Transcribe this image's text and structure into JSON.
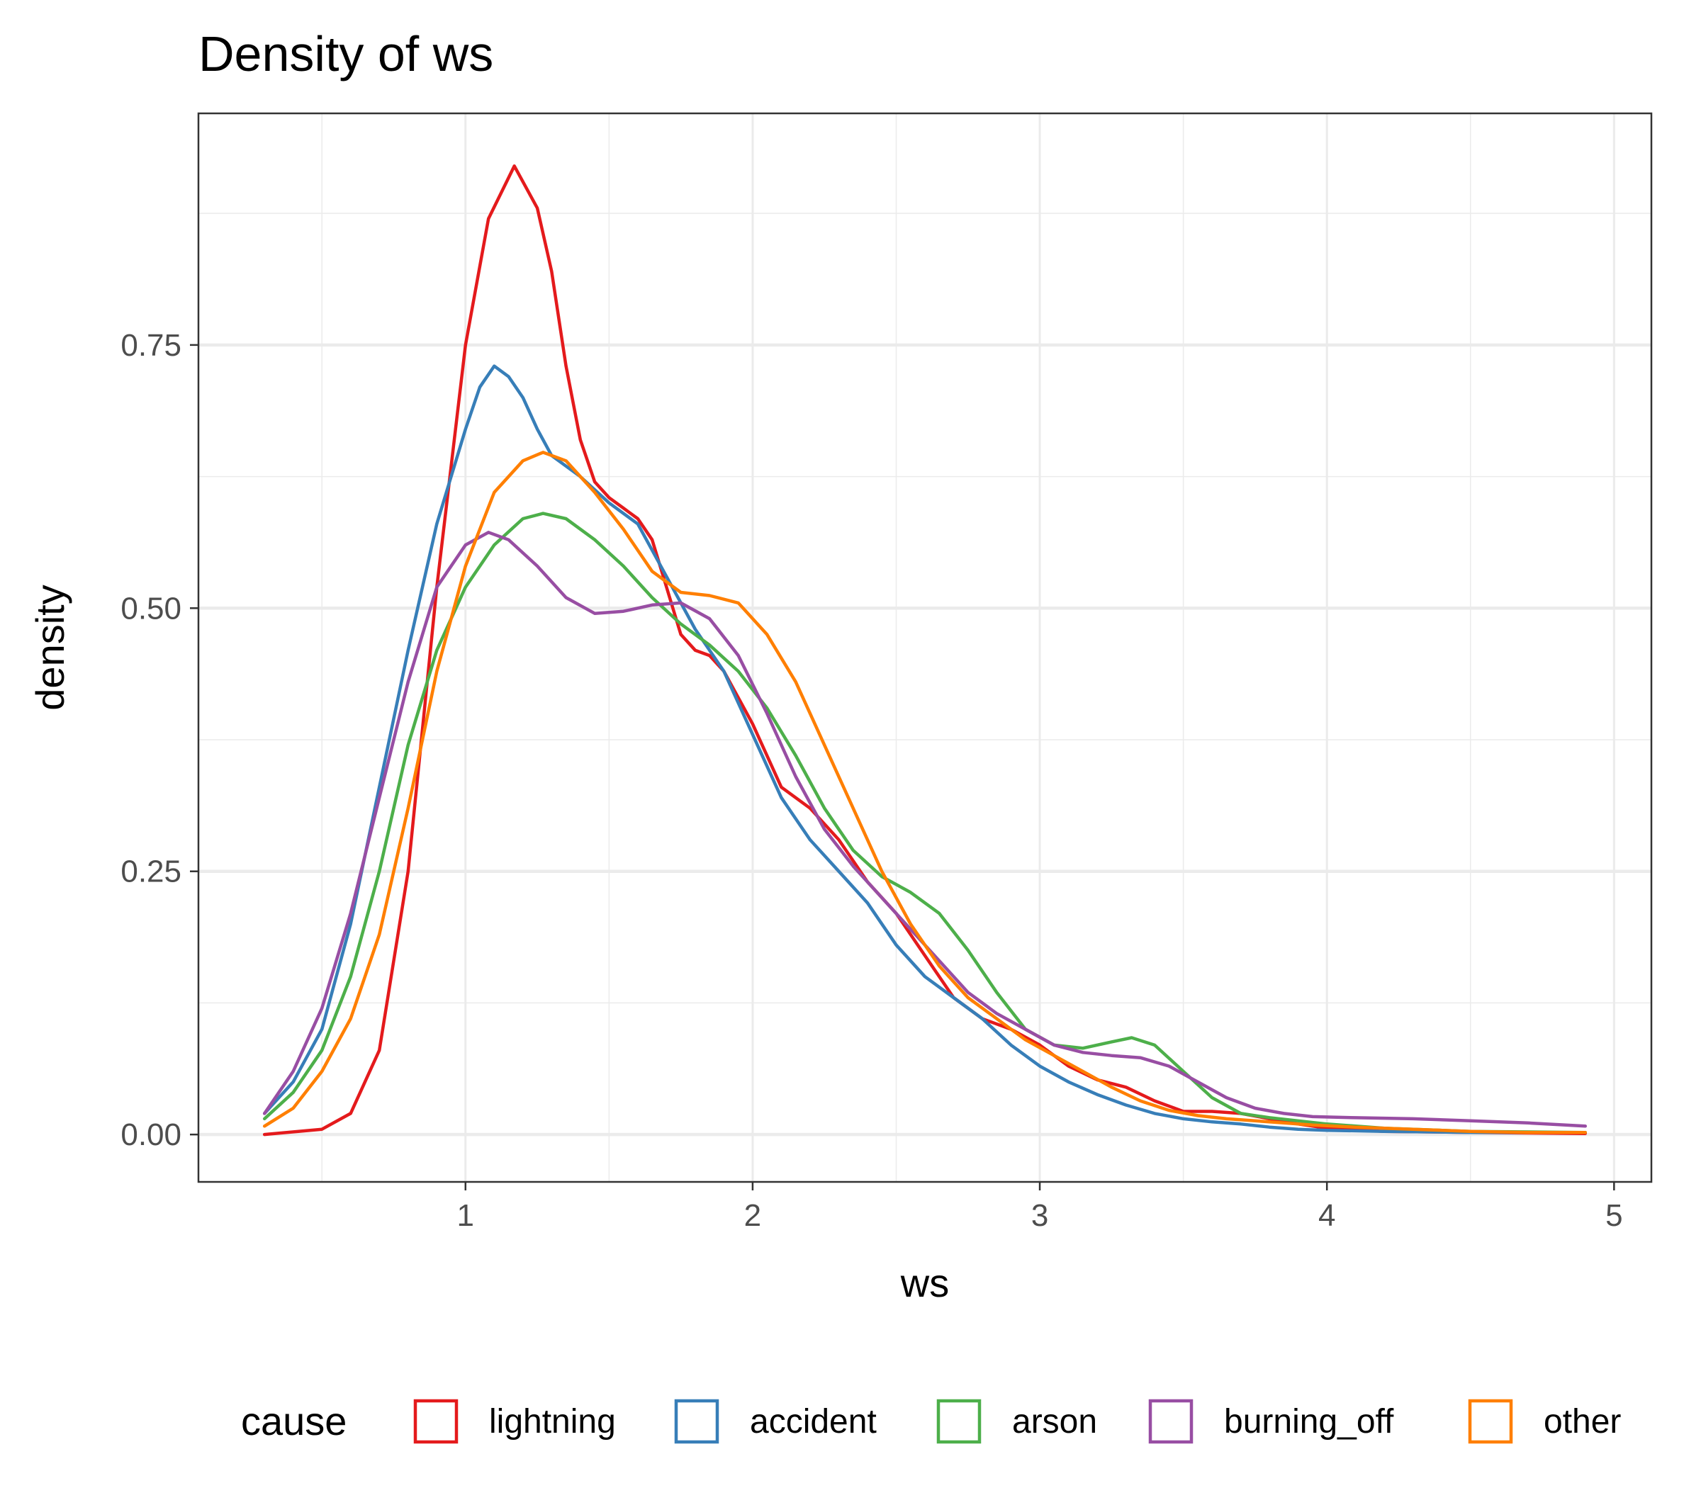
{
  "chart_data": {
    "type": "line",
    "title": "Density of ws",
    "xlabel": "ws",
    "ylabel": "density",
    "xlim": [
      0.3,
      4.9
    ],
    "ylim": [
      0,
      0.92
    ],
    "x_ticks": [
      1,
      2,
      3,
      4,
      5
    ],
    "x_tick_labels": [
      "1",
      "2",
      "3",
      "4",
      "5"
    ],
    "y_ticks": [
      0,
      0.25,
      0.5,
      0.75
    ],
    "y_tick_labels": [
      "0.00",
      "0.25",
      "0.50",
      "0.75"
    ],
    "grid": true,
    "legend": {
      "title": "cause",
      "position": "bottom"
    },
    "series": [
      {
        "name": "lightning",
        "color": "#E41A1C",
        "points": [
          [
            0.3,
            0.0
          ],
          [
            0.5,
            0.005
          ],
          [
            0.6,
            0.02
          ],
          [
            0.7,
            0.08
          ],
          [
            0.8,
            0.25
          ],
          [
            0.9,
            0.52
          ],
          [
            1.0,
            0.75
          ],
          [
            1.08,
            0.87
          ],
          [
            1.17,
            0.92
          ],
          [
            1.25,
            0.88
          ],
          [
            1.3,
            0.82
          ],
          [
            1.35,
            0.73
          ],
          [
            1.4,
            0.66
          ],
          [
            1.45,
            0.62
          ],
          [
            1.5,
            0.605
          ],
          [
            1.55,
            0.595
          ],
          [
            1.6,
            0.585
          ],
          [
            1.65,
            0.565
          ],
          [
            1.7,
            0.52
          ],
          [
            1.75,
            0.475
          ],
          [
            1.8,
            0.46
          ],
          [
            1.85,
            0.455
          ],
          [
            1.9,
            0.44
          ],
          [
            2.0,
            0.39
          ],
          [
            2.1,
            0.33
          ],
          [
            2.2,
            0.31
          ],
          [
            2.3,
            0.28
          ],
          [
            2.4,
            0.24
          ],
          [
            2.5,
            0.21
          ],
          [
            2.6,
            0.17
          ],
          [
            2.7,
            0.13
          ],
          [
            2.8,
            0.11
          ],
          [
            2.9,
            0.1
          ],
          [
            3.0,
            0.085
          ],
          [
            3.1,
            0.065
          ],
          [
            3.2,
            0.052
          ],
          [
            3.3,
            0.045
          ],
          [
            3.4,
            0.032
          ],
          [
            3.5,
            0.022
          ],
          [
            3.6,
            0.022
          ],
          [
            3.7,
            0.02
          ],
          [
            3.8,
            0.015
          ],
          [
            3.9,
            0.01
          ],
          [
            4.0,
            0.006
          ],
          [
            4.2,
            0.003
          ],
          [
            4.5,
            0.002
          ],
          [
            4.9,
            0.001
          ]
        ]
      },
      {
        "name": "accident",
        "color": "#377EB8",
        "points": [
          [
            0.3,
            0.02
          ],
          [
            0.4,
            0.05
          ],
          [
            0.5,
            0.1
          ],
          [
            0.6,
            0.2
          ],
          [
            0.7,
            0.33
          ],
          [
            0.8,
            0.46
          ],
          [
            0.9,
            0.58
          ],
          [
            1.0,
            0.67
          ],
          [
            1.05,
            0.71
          ],
          [
            1.1,
            0.73
          ],
          [
            1.15,
            0.72
          ],
          [
            1.2,
            0.7
          ],
          [
            1.25,
            0.67
          ],
          [
            1.3,
            0.645
          ],
          [
            1.4,
            0.625
          ],
          [
            1.5,
            0.6
          ],
          [
            1.6,
            0.58
          ],
          [
            1.7,
            0.53
          ],
          [
            1.8,
            0.48
          ],
          [
            1.9,
            0.44
          ],
          [
            2.0,
            0.38
          ],
          [
            2.1,
            0.32
          ],
          [
            2.2,
            0.28
          ],
          [
            2.3,
            0.25
          ],
          [
            2.4,
            0.22
          ],
          [
            2.5,
            0.18
          ],
          [
            2.6,
            0.15
          ],
          [
            2.7,
            0.13
          ],
          [
            2.8,
            0.11
          ],
          [
            2.9,
            0.085
          ],
          [
            3.0,
            0.065
          ],
          [
            3.1,
            0.05
          ],
          [
            3.2,
            0.038
          ],
          [
            3.3,
            0.028
          ],
          [
            3.4,
            0.02
          ],
          [
            3.5,
            0.015
          ],
          [
            3.6,
            0.012
          ],
          [
            3.7,
            0.01
          ],
          [
            3.8,
            0.007
          ],
          [
            3.9,
            0.005
          ],
          [
            4.0,
            0.004
          ],
          [
            4.2,
            0.003
          ],
          [
            4.5,
            0.002
          ],
          [
            4.9,
            0.002
          ]
        ]
      },
      {
        "name": "arson",
        "color": "#4DAF4A",
        "points": [
          [
            0.3,
            0.015
          ],
          [
            0.4,
            0.04
          ],
          [
            0.5,
            0.08
          ],
          [
            0.6,
            0.15
          ],
          [
            0.7,
            0.25
          ],
          [
            0.8,
            0.37
          ],
          [
            0.9,
            0.46
          ],
          [
            1.0,
            0.52
          ],
          [
            1.1,
            0.56
          ],
          [
            1.2,
            0.585
          ],
          [
            1.27,
            0.59
          ],
          [
            1.35,
            0.585
          ],
          [
            1.45,
            0.565
          ],
          [
            1.55,
            0.54
          ],
          [
            1.65,
            0.51
          ],
          [
            1.75,
            0.485
          ],
          [
            1.85,
            0.465
          ],
          [
            1.95,
            0.44
          ],
          [
            2.05,
            0.405
          ],
          [
            2.15,
            0.36
          ],
          [
            2.25,
            0.31
          ],
          [
            2.35,
            0.27
          ],
          [
            2.45,
            0.245
          ],
          [
            2.55,
            0.23
          ],
          [
            2.65,
            0.21
          ],
          [
            2.75,
            0.175
          ],
          [
            2.85,
            0.135
          ],
          [
            2.95,
            0.1
          ],
          [
            3.05,
            0.085
          ],
          [
            3.15,
            0.082
          ],
          [
            3.25,
            0.088
          ],
          [
            3.32,
            0.092
          ],
          [
            3.4,
            0.085
          ],
          [
            3.5,
            0.06
          ],
          [
            3.6,
            0.035
          ],
          [
            3.7,
            0.02
          ],
          [
            3.8,
            0.016
          ],
          [
            3.9,
            0.013
          ],
          [
            4.0,
            0.01
          ],
          [
            4.2,
            0.006
          ],
          [
            4.5,
            0.003
          ],
          [
            4.9,
            0.002
          ]
        ]
      },
      {
        "name": "burning_off",
        "color": "#984EA3",
        "points": [
          [
            0.3,
            0.02
          ],
          [
            0.4,
            0.06
          ],
          [
            0.5,
            0.12
          ],
          [
            0.6,
            0.21
          ],
          [
            0.7,
            0.32
          ],
          [
            0.8,
            0.43
          ],
          [
            0.9,
            0.52
          ],
          [
            1.0,
            0.56
          ],
          [
            1.08,
            0.572
          ],
          [
            1.15,
            0.565
          ],
          [
            1.25,
            0.54
          ],
          [
            1.35,
            0.51
          ],
          [
            1.45,
            0.495
          ],
          [
            1.55,
            0.497
          ],
          [
            1.65,
            0.503
          ],
          [
            1.75,
            0.505
          ],
          [
            1.85,
            0.49
          ],
          [
            1.95,
            0.455
          ],
          [
            2.05,
            0.4
          ],
          [
            2.15,
            0.34
          ],
          [
            2.25,
            0.29
          ],
          [
            2.35,
            0.255
          ],
          [
            2.45,
            0.225
          ],
          [
            2.55,
            0.195
          ],
          [
            2.65,
            0.165
          ],
          [
            2.75,
            0.135
          ],
          [
            2.85,
            0.115
          ],
          [
            2.95,
            0.1
          ],
          [
            3.05,
            0.085
          ],
          [
            3.15,
            0.078
          ],
          [
            3.25,
            0.075
          ],
          [
            3.35,
            0.073
          ],
          [
            3.45,
            0.065
          ],
          [
            3.55,
            0.05
          ],
          [
            3.65,
            0.035
          ],
          [
            3.75,
            0.025
          ],
          [
            3.85,
            0.02
          ],
          [
            3.95,
            0.017
          ],
          [
            4.1,
            0.016
          ],
          [
            4.3,
            0.015
          ],
          [
            4.5,
            0.013
          ],
          [
            4.7,
            0.011
          ],
          [
            4.9,
            0.008
          ]
        ]
      },
      {
        "name": "other",
        "color": "#FF7F00",
        "points": [
          [
            0.3,
            0.008
          ],
          [
            0.4,
            0.025
          ],
          [
            0.5,
            0.06
          ],
          [
            0.6,
            0.11
          ],
          [
            0.7,
            0.19
          ],
          [
            0.8,
            0.31
          ],
          [
            0.9,
            0.44
          ],
          [
            1.0,
            0.54
          ],
          [
            1.1,
            0.61
          ],
          [
            1.2,
            0.64
          ],
          [
            1.27,
            0.648
          ],
          [
            1.35,
            0.64
          ],
          [
            1.45,
            0.61
          ],
          [
            1.55,
            0.575
          ],
          [
            1.65,
            0.535
          ],
          [
            1.75,
            0.515
          ],
          [
            1.85,
            0.512
          ],
          [
            1.95,
            0.505
          ],
          [
            2.05,
            0.475
          ],
          [
            2.15,
            0.43
          ],
          [
            2.25,
            0.37
          ],
          [
            2.35,
            0.31
          ],
          [
            2.45,
            0.25
          ],
          [
            2.55,
            0.2
          ],
          [
            2.65,
            0.16
          ],
          [
            2.75,
            0.13
          ],
          [
            2.85,
            0.11
          ],
          [
            2.95,
            0.09
          ],
          [
            3.05,
            0.075
          ],
          [
            3.15,
            0.06
          ],
          [
            3.25,
            0.045
          ],
          [
            3.35,
            0.032
          ],
          [
            3.45,
            0.023
          ],
          [
            3.55,
            0.018
          ],
          [
            3.65,
            0.015
          ],
          [
            3.75,
            0.013
          ],
          [
            3.85,
            0.011
          ],
          [
            3.95,
            0.009
          ],
          [
            4.1,
            0.007
          ],
          [
            4.3,
            0.005
          ],
          [
            4.5,
            0.003
          ],
          [
            4.7,
            0.002
          ],
          [
            4.9,
            0.002
          ]
        ]
      }
    ]
  }
}
